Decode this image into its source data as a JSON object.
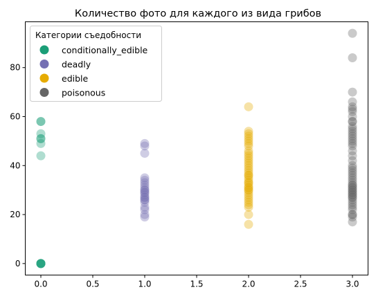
{
  "chart_data": {
    "type": "scatter",
    "title": "Количество фото для каждого из вида грибов",
    "xlabel": "",
    "ylabel": "",
    "xlim": [
      -0.15,
      3.15
    ],
    "ylim": [
      -4.7,
      98.7
    ],
    "x_ticks": [
      0.0,
      0.5,
      1.0,
      1.5,
      2.0,
      2.5,
      3.0
    ],
    "x_tick_labels": [
      "0.0",
      "0.5",
      "1.0",
      "1.5",
      "2.0",
      "2.5",
      "3.0"
    ],
    "y_ticks": [
      0,
      20,
      40,
      60,
      80
    ],
    "y_tick_labels": [
      "0",
      "20",
      "40",
      "60",
      "80"
    ],
    "grid": false,
    "legend": {
      "title": "Категории съедобности",
      "placement": "top-left"
    },
    "marker_alpha": 0.35,
    "series": [
      {
        "name": "conditionally_edible",
        "color": "#1b9e77",
        "x": [
          0,
          0,
          0,
          0,
          0,
          0,
          0,
          0,
          0,
          0,
          0,
          0,
          0
        ],
        "y": [
          58,
          58,
          53,
          51,
          51,
          49,
          44,
          0,
          0,
          0,
          0,
          0,
          0
        ]
      },
      {
        "name": "deadly",
        "color": "#7570b3",
        "x": [
          1,
          1,
          1,
          1,
          1,
          1,
          1,
          1,
          1,
          1,
          1,
          1,
          1,
          1,
          1,
          1,
          1,
          1,
          1,
          1,
          1,
          1
        ],
        "y": [
          49,
          48,
          45,
          35,
          34,
          33,
          31,
          30,
          30,
          29,
          28,
          27,
          26,
          26,
          25,
          27,
          29,
          23,
          22,
          20,
          19,
          32
        ]
      },
      {
        "name": "edible",
        "color": "#e6ab02",
        "x": [
          2,
          2,
          2,
          2,
          2,
          2,
          2,
          2,
          2,
          2,
          2,
          2,
          2,
          2,
          2,
          2,
          2,
          2,
          2,
          2,
          2,
          2,
          2,
          2,
          2,
          2,
          2,
          2,
          2,
          2,
          2,
          2,
          2,
          2,
          2,
          2,
          2,
          2
        ],
        "y": [
          64,
          54,
          53,
          51,
          50,
          49,
          48,
          46,
          45,
          43,
          42,
          40,
          39,
          38,
          37,
          36,
          35,
          34,
          33,
          32,
          31,
          30,
          30,
          29,
          28,
          27,
          26,
          25,
          24,
          23,
          20,
          16,
          41,
          44,
          52,
          36,
          33,
          31
        ]
      },
      {
        "name": "poisonous",
        "color": "#666666",
        "x": [
          3,
          3,
          3,
          3,
          3,
          3,
          3,
          3,
          3,
          3,
          3,
          3,
          3,
          3,
          3,
          3,
          3,
          3,
          3,
          3,
          3,
          3,
          3,
          3,
          3,
          3,
          3,
          3,
          3,
          3,
          3,
          3,
          3,
          3,
          3,
          3,
          3,
          3,
          3,
          3,
          3,
          3,
          3,
          3,
          3,
          3,
          3,
          3,
          3,
          3,
          3
        ],
        "y": [
          94,
          84,
          70,
          66,
          64,
          63,
          62,
          60,
          58,
          56,
          55,
          54,
          53,
          52,
          51,
          50,
          49,
          48,
          46,
          44,
          42,
          40,
          39,
          38,
          37,
          36,
          35,
          34,
          33,
          32,
          32,
          31,
          31,
          30,
          30,
          29,
          29,
          28,
          28,
          27,
          27,
          26,
          25,
          24,
          23,
          22,
          20,
          20,
          19,
          17,
          58
        ]
      }
    ]
  }
}
